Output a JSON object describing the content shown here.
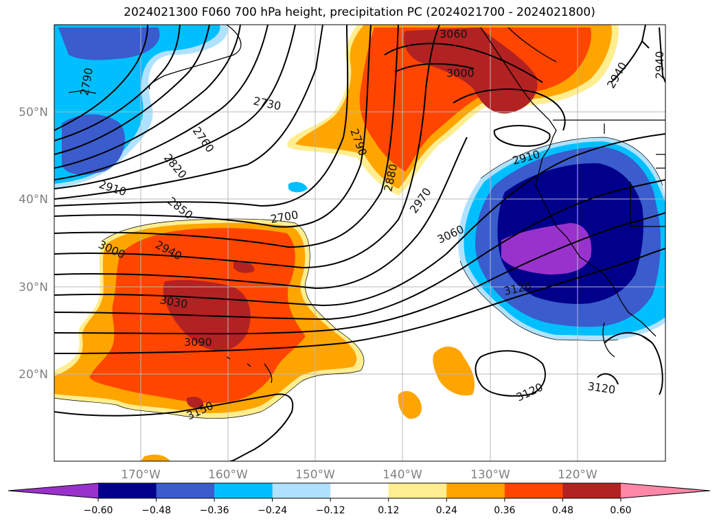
{
  "title": "2024021300 F060 700 hPa height, precipitation PC (2024021700 - 2024021800)",
  "lat_labels": [
    "50°N",
    "40°N",
    "30°N",
    "20°N"
  ],
  "lon_labels": [
    "170°W",
    "160°W",
    "150°W",
    "140°W",
    "130°W",
    "120°W"
  ],
  "contour_labels": [
    "3060",
    "3000",
    "2730",
    "2760",
    "2820",
    "2910",
    "2850",
    "2700",
    "2790",
    "2880",
    "2970",
    "2940",
    "3000",
    "3060",
    "2910",
    "2970",
    "2940",
    "3030",
    "3090",
    "3150",
    "3120",
    "3120",
    "3120",
    "2790"
  ],
  "colorbar": {
    "ticks": [
      "−0.60",
      "−0.48",
      "−0.36",
      "−0.24",
      "−0.12",
      "0.12",
      "0.24",
      "0.36",
      "0.48",
      "0.60"
    ],
    "colors": [
      "#9932cc",
      "#00008b",
      "#3a5ccc",
      "#00bfff",
      "#b0e2ff",
      "#ffffff",
      "#ffee90",
      "#ffa500",
      "#ff4500",
      "#b22222",
      "#ff88a8"
    ]
  },
  "palette": {
    "neg_strong": "#9932cc",
    "neg_dark": "#00008b",
    "neg_mid": "#3a5ccc",
    "neg_light": "#00bfff",
    "neg_pale": "#b0e2ff",
    "pos_pale": "#ffee90",
    "pos_light": "#ffa500",
    "pos_mid": "#ff4500",
    "pos_dark": "#b22222",
    "pos_strong": "#ff88a8"
  }
}
